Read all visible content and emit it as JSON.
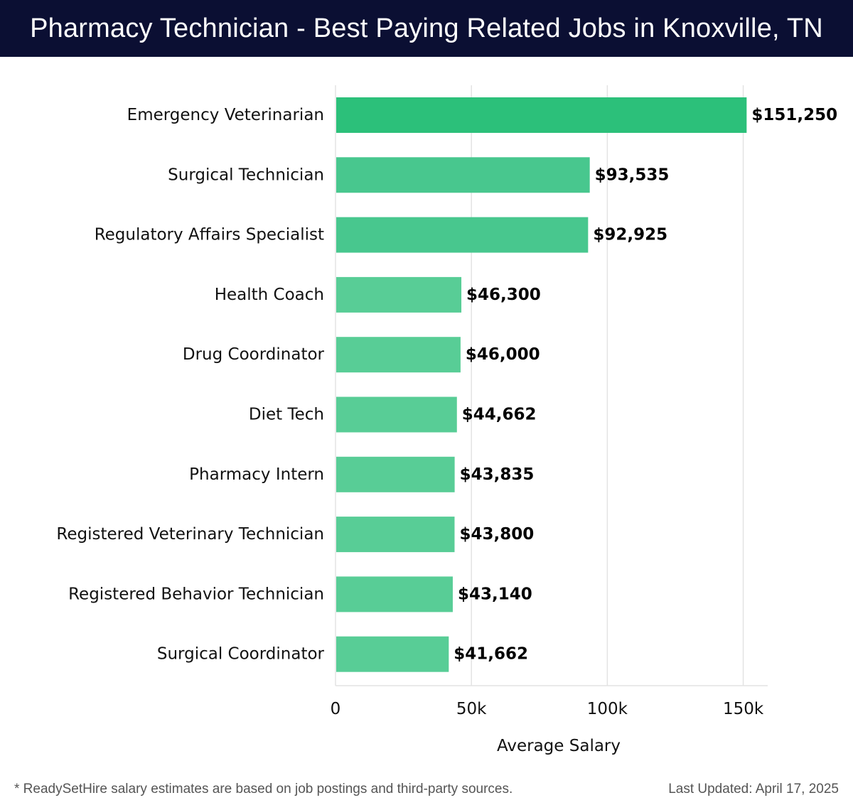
{
  "header": {
    "title": "Pharmacy Technician - Best Paying Related Jobs in Knoxville, TN"
  },
  "footer": {
    "note": "* ReadySetHire salary estimates are based on job postings and third-party sources.",
    "updated": "Last Updated: April 17, 2025"
  },
  "colors": {
    "header_bg": "#0b0f33",
    "bar_top": "#2cc07a",
    "bar_mid": "#48c78e",
    "bar_low": "#58cd96",
    "grid": "#e3e3e3"
  },
  "chart_data": {
    "type": "bar",
    "orientation": "horizontal",
    "categories": [
      "Emergency Veterinarian",
      "Surgical Technician",
      "Regulatory Affairs Specialist",
      "Health Coach",
      "Drug Coordinator",
      "Diet Tech",
      "Pharmacy Intern",
      "Registered Veterinary Technician",
      "Registered Behavior Technician",
      "Surgical Coordinator"
    ],
    "values": [
      151250,
      93535,
      92925,
      46300,
      46000,
      44662,
      43835,
      43800,
      43140,
      41662
    ],
    "value_labels": [
      "$151,250",
      "$93,535",
      "$92,925",
      "$46,300",
      "$46,000",
      "$44,662",
      "$43,835",
      "$43,800",
      "$43,140",
      "$41,662"
    ],
    "xlabel": "Average Salary",
    "ylabel": "",
    "xlim": [
      0,
      159000
    ],
    "xticks": [
      0,
      50000,
      100000,
      150000
    ],
    "xtick_labels": [
      "0",
      "50k",
      "100k",
      "150k"
    ],
    "grid": true
  }
}
